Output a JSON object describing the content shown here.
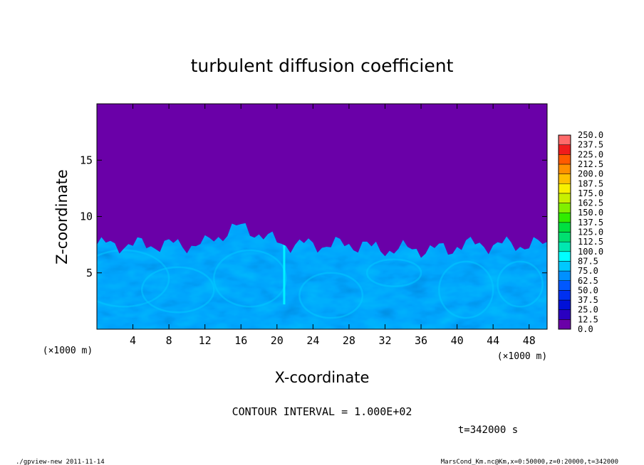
{
  "chart_data": {
    "type": "heatmap",
    "title": "turbulent diffusion coefficient",
    "xlabel": "X-coordinate",
    "ylabel": "Z-coordinate",
    "x_unit": "(×1000 m)",
    "y_unit": "(×1000 m)",
    "xlim": [
      0,
      50
    ],
    "ylim": [
      0,
      20
    ],
    "x_ticks": [
      4,
      8,
      12,
      16,
      20,
      24,
      28,
      32,
      36,
      40,
      44,
      48
    ],
    "y_ticks": [
      5,
      10,
      15
    ],
    "colorbar_levels": [
      "0.0",
      "12.5",
      "25.0",
      "37.5",
      "50.0",
      "62.5",
      "75.0",
      "87.5",
      "100.0",
      "112.5",
      "125.0",
      "137.5",
      "150.0",
      "162.5",
      "175.0",
      "187.5",
      "200.0",
      "212.5",
      "225.0",
      "237.5",
      "250.0"
    ],
    "colorbar_colors": [
      "#6a00a8",
      "#2a00c0",
      "#0010d8",
      "#0030f0",
      "#0058ff",
      "#0090ff",
      "#00c8ff",
      "#00ffff",
      "#00e8b0",
      "#00e070",
      "#00e040",
      "#30ec00",
      "#80f000",
      "#c8f000",
      "#f8f000",
      "#ffc000",
      "#ff9000",
      "#ff5a00",
      "#f01c1c",
      "#ff6a6a"
    ],
    "background_level": "0.0",
    "turbulent_layer_top_z": 7.5,
    "contour_interval": "CONTOUR INTERVAL = 1.000E+02",
    "time_label": "t=342000 s",
    "footer_left": "./gpview-new  2011-11-14",
    "footer_right": "MarsCond_Km.nc@Km,x=0:50000,z=0:20000,t=342000"
  }
}
